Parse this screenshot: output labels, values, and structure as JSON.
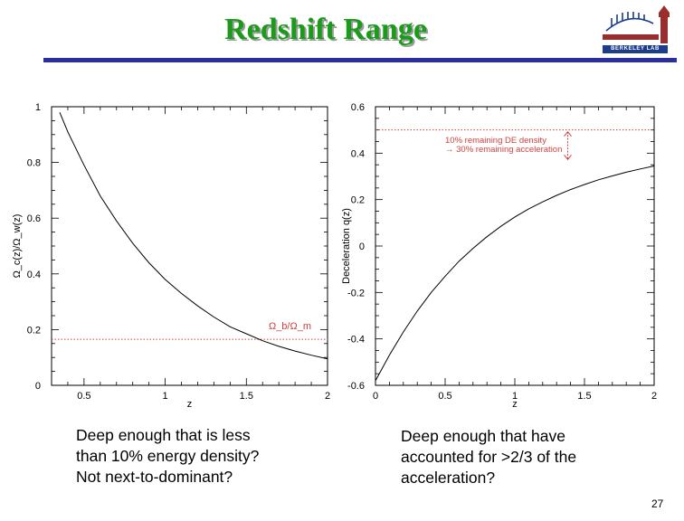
{
  "slide": {
    "title": "Redshift Range",
    "logo_text": "BERKELEY LAB",
    "slide_number": "27",
    "colors": {
      "title": "#1a9b1a",
      "rule": "#2b2f9e",
      "curve": "#000000",
      "reference_line": "#d04040"
    }
  },
  "captions": {
    "left": [
      "Deep enough that is less",
      "than 10% energy density?",
      "Not next-to-dominant?"
    ],
    "right": [
      "Deep enough that have",
      "accounted for >2/3 of the",
      "acceleration?"
    ]
  },
  "chart_data": [
    {
      "type": "line",
      "title": "",
      "xlabel": "z",
      "ylabel": "Ω_c(z)/Ω_w(z)",
      "xlim": [
        0.3,
        2.0
      ],
      "ylim": [
        0,
        1
      ],
      "xticks": [
        0.5,
        1,
        1.5,
        2
      ],
      "xtick_labels": [
        "0.5",
        "1",
        "1.5",
        "2"
      ],
      "yticks": [
        0,
        0.2,
        0.4,
        0.6,
        0.8,
        1
      ],
      "ytick_labels": [
        "0",
        "0.2",
        "0.4",
        "0.6",
        "0.8",
        "1"
      ],
      "grid": false,
      "series": [
        {
          "name": "density ratio",
          "x": [
            0.35,
            0.4,
            0.5,
            0.6,
            0.7,
            0.8,
            0.9,
            1.0,
            1.1,
            1.2,
            1.3,
            1.4,
            1.5,
            1.6,
            1.7,
            1.8,
            1.9,
            2.0
          ],
          "y": [
            0.98,
            0.91,
            0.79,
            0.68,
            0.59,
            0.51,
            0.44,
            0.38,
            0.33,
            0.285,
            0.245,
            0.21,
            0.185,
            0.16,
            0.14,
            0.123,
            0.108,
            0.095
          ]
        }
      ],
      "reference_lines": [
        {
          "y": 0.165,
          "label": "Ω_b/Ω_m"
        }
      ]
    },
    {
      "type": "line",
      "title": "",
      "xlabel": "z",
      "ylabel": "Deceleration q(z)",
      "xlim": [
        0,
        2
      ],
      "ylim": [
        -0.6,
        0.6
      ],
      "xticks": [
        0,
        0.5,
        1,
        1.5,
        2
      ],
      "xtick_labels": [
        "0",
        "0.5",
        "1",
        "1.5",
        "2"
      ],
      "yticks": [
        -0.6,
        -0.4,
        -0.2,
        0,
        0.2,
        0.4,
        0.6
      ],
      "ytick_labels": [
        "-0.6",
        "-0.4",
        "-0.2",
        "0",
        "0.2",
        "0.4",
        "0.6"
      ],
      "grid": false,
      "series": [
        {
          "name": "q(z)",
          "x": [
            0,
            0.1,
            0.2,
            0.3,
            0.4,
            0.5,
            0.6,
            0.7,
            0.8,
            0.9,
            1.0,
            1.1,
            1.2,
            1.3,
            1.4,
            1.5,
            1.6,
            1.7,
            1.8,
            1.9,
            2.0
          ],
          "y": [
            -0.58,
            -0.47,
            -0.37,
            -0.28,
            -0.2,
            -0.13,
            -0.065,
            -0.01,
            0.04,
            0.085,
            0.125,
            0.16,
            0.19,
            0.218,
            0.243,
            0.265,
            0.285,
            0.302,
            0.318,
            0.332,
            0.345
          ]
        }
      ],
      "reference_lines": [
        {
          "y": 0.5
        }
      ],
      "annotations": [
        "10% remaining DE density",
        "→ 30% remaining acceleration"
      ]
    }
  ]
}
